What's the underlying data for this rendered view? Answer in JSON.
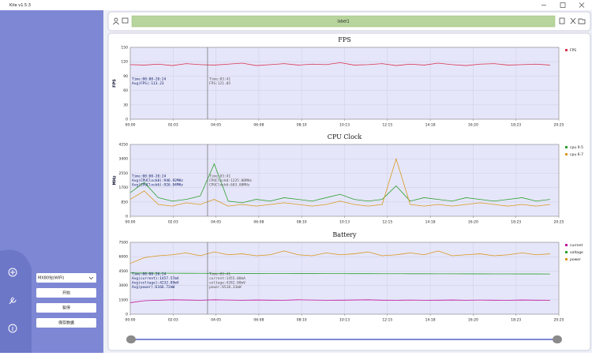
{
  "window": {
    "title": "Kite v1.5.3"
  },
  "sidebar": {
    "device": "MX809J(WIFI)",
    "buttons": [
      "开始",
      "暂停",
      "保存数据"
    ]
  },
  "toolbar": {
    "label": "label1"
  },
  "chart_data": [
    {
      "type": "line",
      "title": "FPS",
      "y_label": "FPS",
      "x": [
        0,
        40,
        80,
        120,
        160,
        200,
        240,
        280,
        320,
        360,
        400,
        440,
        480,
        520,
        560,
        600,
        640,
        680,
        720,
        760,
        800,
        840,
        880,
        920,
        960,
        1000,
        1040,
        1080,
        1120,
        1160,
        1200
      ],
      "xlim": [
        0,
        1225
      ],
      "xticks": [
        {
          "value": 0,
          "label": "00:00"
        },
        {
          "value": 122.5,
          "label": "02:03"
        },
        {
          "value": 245,
          "label": "04:05"
        },
        {
          "value": 367.5,
          "label": "06:08"
        },
        {
          "value": 490,
          "label": "08:10"
        },
        {
          "value": 612.5,
          "label": "10:13"
        },
        {
          "value": 735,
          "label": "12:15"
        },
        {
          "value": 857.5,
          "label": "14:18"
        },
        {
          "value": 980,
          "label": "16:20"
        },
        {
          "value": 1102.5,
          "label": "18:23"
        },
        {
          "value": 1225,
          "label": "20:25"
        }
      ],
      "ylim": [
        0,
        150
      ],
      "yticks": [
        0,
        30,
        60,
        90,
        120,
        150
      ],
      "grid": true,
      "cursor": 221,
      "summary": [
        "Time:00:00-20:24",
        "Avg(FPS):113.23"
      ],
      "cursor_info": [
        "Time:03:41",
        "FPS:121.05"
      ],
      "series": [
        {
          "name": "FPS",
          "color": "#d8344f",
          "values": [
            114,
            113,
            115,
            112,
            116,
            114,
            113,
            115,
            117,
            112,
            114,
            116,
            113,
            115,
            114,
            118,
            113,
            114,
            116,
            112,
            115,
            113,
            117,
            114,
            112,
            115,
            116,
            113,
            114,
            115,
            113
          ]
        }
      ]
    },
    {
      "type": "line",
      "title": "CPU Clock",
      "y_label": "MHz",
      "x": [
        0,
        40,
        80,
        120,
        160,
        200,
        240,
        280,
        320,
        360,
        400,
        440,
        480,
        520,
        560,
        600,
        640,
        680,
        720,
        760,
        800,
        840,
        880,
        920,
        960,
        1000,
        1040,
        1080,
        1120,
        1160,
        1200
      ],
      "xlim": [
        0,
        1225
      ],
      "xticks": [
        {
          "value": 0,
          "label": "00:00"
        },
        {
          "value": 122.5,
          "label": "02:03"
        },
        {
          "value": 245,
          "label": "04:05"
        },
        {
          "value": 367.5,
          "label": "06:08"
        },
        {
          "value": 490,
          "label": "08:10"
        },
        {
          "value": 612.5,
          "label": "10:13"
        },
        {
          "value": 735,
          "label": "12:15"
        },
        {
          "value": 857.5,
          "label": "14:18"
        },
        {
          "value": 980,
          "label": "16:20"
        },
        {
          "value": 1102.5,
          "label": "18:23"
        },
        {
          "value": 1225,
          "label": "20:25"
        }
      ],
      "ylim": [
        0,
        4250
      ],
      "yticks": [
        0,
        850,
        1700,
        2550,
        3400,
        4250
      ],
      "grid": true,
      "cursor": 221,
      "summary": [
        "Time:00:00-20:24",
        "Avg(CPUClock0):946.92MHz",
        "Avg(CPUClock6):926.94MHz"
      ],
      "cursor_info": [
        "Time:03:41",
        "CPUClock0:1225.00MHz",
        "CPUClock6:603.00MHz"
      ],
      "series": [
        {
          "name": "cpu 0-5",
          "color": "#2ca02c",
          "values": [
            1400,
            2000,
            1100,
            900,
            1000,
            1200,
            3100,
            900,
            800,
            1000,
            900,
            1100,
            1000,
            900,
            1100,
            1300,
            1000,
            900,
            1000,
            1800,
            900,
            1100,
            1000,
            900,
            1100,
            1000,
            900,
            1000,
            1100,
            900,
            1000
          ]
        },
        {
          "name": "cpu 6-7",
          "color": "#d89a1c",
          "values": [
            1000,
            1500,
            700,
            600,
            800,
            700,
            1000,
            600,
            700,
            600,
            700,
            800,
            700,
            600,
            700,
            900,
            700,
            600,
            700,
            3400,
            700,
            600,
            700,
            600,
            700,
            800,
            700,
            600,
            700,
            600,
            700
          ]
        }
      ]
    },
    {
      "type": "line",
      "title": "Battery",
      "x": [
        0,
        40,
        80,
        120,
        160,
        200,
        240,
        280,
        320,
        360,
        400,
        440,
        480,
        520,
        560,
        600,
        640,
        680,
        720,
        760,
        800,
        840,
        880,
        920,
        960,
        1000,
        1040,
        1080,
        1120,
        1160,
        1200
      ],
      "xlim": [
        0,
        1225
      ],
      "xticks": [
        {
          "value": 0,
          "label": "00:00"
        },
        {
          "value": 122.5,
          "label": "02:03"
        },
        {
          "value": 245,
          "label": "04:05"
        },
        {
          "value": 367.5,
          "label": "06:08"
        },
        {
          "value": 490,
          "label": "08:10"
        },
        {
          "value": 612.5,
          "label": "10:13"
        },
        {
          "value": 735,
          "label": "12:15"
        },
        {
          "value": 857.5,
          "label": "14:18"
        },
        {
          "value": 980,
          "label": "16:20"
        },
        {
          "value": 1102.5,
          "label": "18:23"
        },
        {
          "value": 1225,
          "label": "20:25"
        }
      ],
      "ylim": [
        0,
        7500
      ],
      "yticks": [
        0,
        1500,
        3000,
        4500,
        6000,
        7500
      ],
      "grid": true,
      "cursor": 221,
      "summary": [
        "Time:00:00-20:24",
        "Avg(current):1457.57mA",
        "Avg(voltage):4232.89mV",
        "Avg(power):6166.72mW"
      ],
      "cursor_info": [
        "Time:03:41",
        "current:1455.00mA",
        "voltage:4282.00mV",
        "power:6510.33mW"
      ],
      "series": [
        {
          "name": "current",
          "color": "#c0169c",
          "values": [
            1200,
            1400,
            1450,
            1500,
            1480,
            1450,
            1500,
            1470,
            1450,
            1480,
            1460,
            1450,
            1500,
            1470,
            1450,
            1460,
            1480,
            1500,
            1460,
            1450,
            1470,
            1450,
            1460,
            1480,
            1450,
            1470,
            1460,
            1450,
            1480,
            1460,
            1450
          ]
        },
        {
          "name": "voltage",
          "color": "#2ca02c",
          "values": [
            4300,
            4290,
            4280,
            4275,
            4270,
            4265,
            4260,
            4255,
            4250,
            4248,
            4245,
            4242,
            4240,
            4238,
            4235,
            4232,
            4230,
            4228,
            4225,
            4222,
            4220,
            4218,
            4215,
            4212,
            4210,
            4208,
            4205,
            4202,
            4200,
            4198,
            4195
          ]
        },
        {
          "name": "power",
          "color": "#d8961c",
          "values": [
            5300,
            5900,
            6100,
            6200,
            6400,
            6100,
            6500,
            6200,
            6300,
            6100,
            6200,
            6600,
            6200,
            6100,
            6400,
            6200,
            6300,
            6500,
            6100,
            6200,
            6400,
            6200,
            6600,
            6100,
            6200,
            6300,
            6100,
            6200,
            6400,
            6200,
            6300
          ]
        }
      ]
    }
  ]
}
